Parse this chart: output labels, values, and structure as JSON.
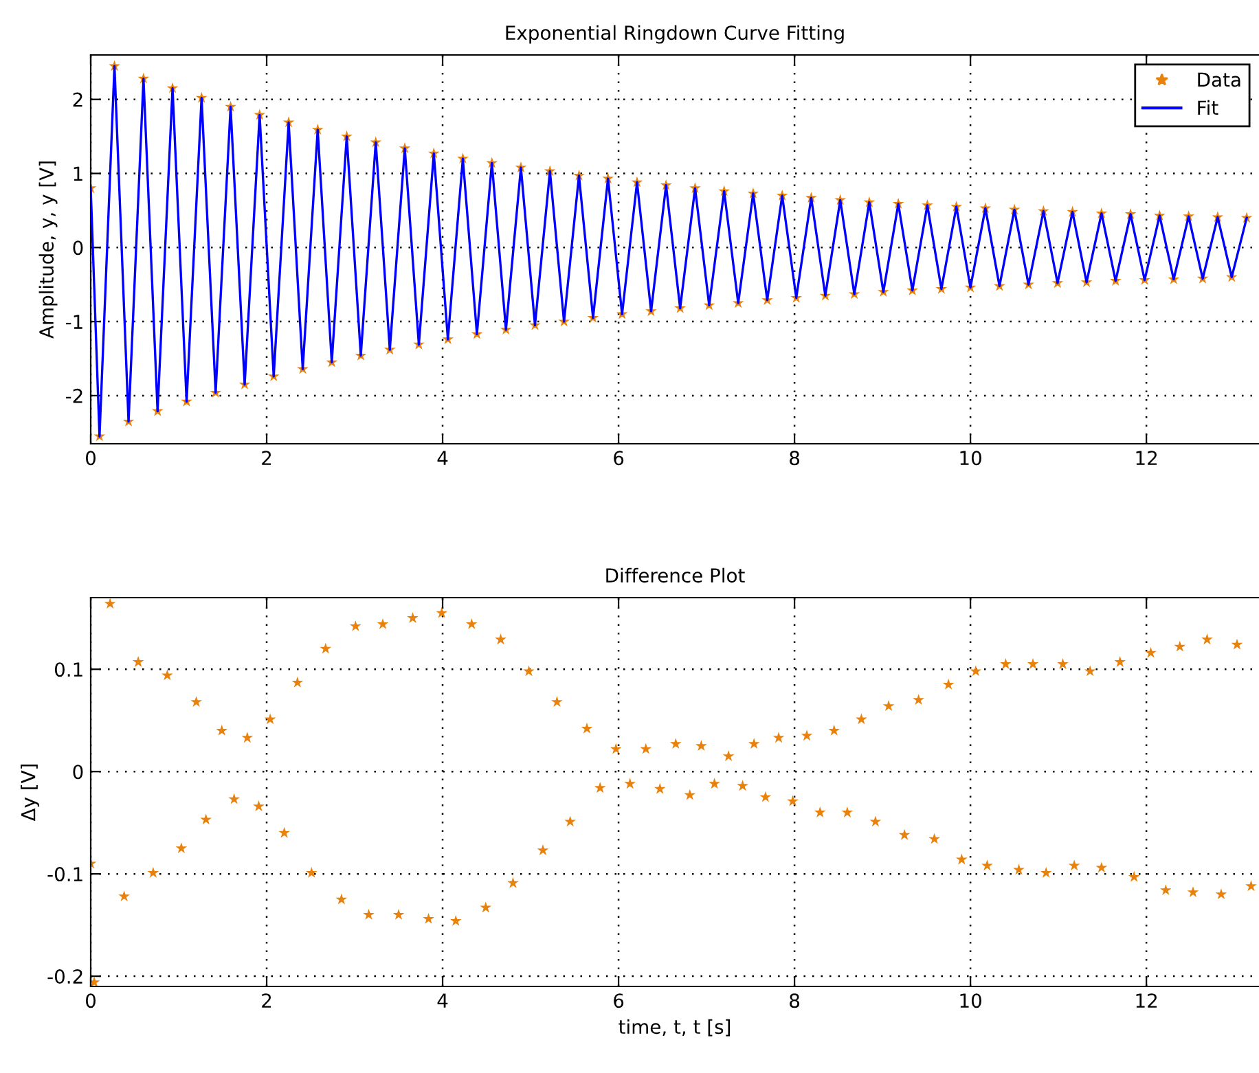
{
  "chart_data": [
    {
      "type": "scatter",
      "title": "Exponential Ringdown Curve Fitting",
      "ylabel": "Amplitude, y, y [V]",
      "x": [
        0.0,
        0.1,
        0.27,
        0.43,
        0.6,
        0.76,
        0.93,
        1.09,
        1.26,
        1.42,
        1.59,
        1.75,
        1.92,
        2.08,
        2.25,
        2.41,
        2.58,
        2.74,
        2.91,
        3.07,
        3.24,
        3.4,
        3.57,
        3.73,
        3.9,
        4.06,
        4.23,
        4.39,
        4.56,
        4.72,
        4.89,
        5.05,
        5.22,
        5.38,
        5.55,
        5.71,
        5.88,
        6.04,
        6.21,
        6.37,
        6.54,
        6.7,
        6.87,
        7.03,
        7.2,
        7.36,
        7.53,
        7.69,
        7.86,
        8.02,
        8.19,
        8.35,
        8.52,
        8.68,
        8.85,
        9.01,
        9.18,
        9.34,
        9.51,
        9.67,
        9.84,
        10.0,
        10.17,
        10.33,
        10.5,
        10.66,
        10.83,
        10.99,
        11.16,
        11.32,
        11.49,
        11.65,
        11.82,
        11.98,
        12.15,
        12.31,
        12.48,
        12.64,
        12.81,
        12.97,
        13.14
      ],
      "series": [
        {
          "name": "Data",
          "marker": "star",
          "color": "#e8820c",
          "values": [
            0.8,
            -2.55,
            2.45,
            -2.35,
            2.28,
            -2.21,
            2.15,
            -2.08,
            2.02,
            -1.96,
            1.9,
            -1.85,
            1.79,
            -1.74,
            1.69,
            -1.64,
            1.59,
            -1.55,
            1.5,
            -1.46,
            1.42,
            -1.38,
            1.34,
            -1.31,
            1.27,
            -1.24,
            1.2,
            -1.17,
            1.14,
            -1.11,
            1.08,
            -1.05,
            1.03,
            -1.0,
            0.97,
            -0.95,
            0.93,
            -0.9,
            0.88,
            -0.86,
            0.84,
            -0.82,
            0.8,
            -0.78,
            0.76,
            -0.75,
            0.73,
            -0.71,
            0.7,
            -0.68,
            0.67,
            -0.65,
            0.64,
            -0.63,
            0.61,
            -0.6,
            0.59,
            -0.58,
            0.57,
            -0.56,
            0.55,
            -0.54,
            0.53,
            -0.52,
            0.51,
            -0.5,
            0.49,
            -0.48,
            0.48,
            -0.47,
            0.46,
            -0.45,
            0.45,
            -0.44,
            0.43,
            -0.43,
            0.42,
            -0.42,
            0.41,
            -0.4,
            0.4
          ]
        },
        {
          "name": "Fit",
          "type": "line",
          "line_style": "solid",
          "color": "#0000ff",
          "values": [
            0.8,
            -2.55,
            2.45,
            -2.35,
            2.28,
            -2.21,
            2.15,
            -2.08,
            2.02,
            -1.96,
            1.9,
            -1.85,
            1.79,
            -1.74,
            1.69,
            -1.64,
            1.59,
            -1.55,
            1.5,
            -1.46,
            1.42,
            -1.38,
            1.34,
            -1.31,
            1.27,
            -1.24,
            1.2,
            -1.17,
            1.14,
            -1.11,
            1.08,
            -1.05,
            1.03,
            -1.0,
            0.97,
            -0.95,
            0.93,
            -0.9,
            0.88,
            -0.86,
            0.84,
            -0.82,
            0.8,
            -0.78,
            0.76,
            -0.75,
            0.73,
            -0.71,
            0.7,
            -0.68,
            0.67,
            -0.65,
            0.64,
            -0.63,
            0.61,
            -0.6,
            0.59,
            -0.58,
            0.57,
            -0.56,
            0.55,
            -0.54,
            0.53,
            -0.52,
            0.51,
            -0.5,
            0.49,
            -0.48,
            0.48,
            -0.47,
            0.46,
            -0.45,
            0.45,
            -0.44,
            0.43,
            -0.43,
            0.42,
            -0.42,
            0.41,
            -0.4,
            0.4
          ]
        }
      ],
      "xlim": [
        0,
        13.28
      ],
      "xticks": [
        0,
        2,
        4,
        6,
        8,
        10,
        12
      ],
      "ylim": [
        -2.65,
        2.6
      ],
      "yticks": [
        -2,
        -1,
        0,
        1,
        2
      ],
      "grid": true,
      "legend": "top right"
    },
    {
      "type": "scatter",
      "title": "Difference Plot",
      "xlabel": "time, t, t [s]",
      "ylabel": "Δy [V]",
      "x": [
        0.0,
        0.04,
        0.22,
        0.38,
        0.54,
        0.71,
        0.87,
        1.03,
        1.2,
        1.31,
        1.49,
        1.63,
        1.78,
        1.91,
        2.04,
        2.2,
        2.35,
        2.51,
        2.67,
        2.85,
        3.01,
        3.16,
        3.32,
        3.5,
        3.66,
        3.84,
        3.99,
        4.15,
        4.33,
        4.49,
        4.66,
        4.8,
        4.98,
        5.14,
        5.3,
        5.45,
        5.64,
        5.79,
        5.97,
        6.13,
        6.31,
        6.47,
        6.65,
        6.81,
        6.94,
        7.09,
        7.25,
        7.41,
        7.54,
        7.67,
        7.82,
        7.98,
        8.14,
        8.29,
        8.45,
        8.6,
        8.76,
        8.92,
        9.07,
        9.25,
        9.41,
        9.59,
        9.75,
        9.9,
        10.06,
        10.19,
        10.4,
        10.55,
        10.71,
        10.86,
        11.05,
        11.18,
        11.36,
        11.49,
        11.7,
        11.86,
        12.05,
        12.22,
        12.38,
        12.53,
        12.69,
        12.85,
        13.03,
        13.19
      ],
      "series": [
        {
          "marker": "star",
          "color": "#e8820c",
          "values": [
            -0.09,
            -0.206,
            0.164,
            -0.122,
            0.107,
            -0.099,
            0.094,
            -0.075,
            0.068,
            -0.047,
            0.04,
            -0.027,
            0.033,
            -0.034,
            0.051,
            -0.06,
            0.087,
            -0.099,
            0.12,
            -0.125,
            0.142,
            -0.14,
            0.144,
            -0.14,
            0.15,
            -0.144,
            0.155,
            -0.146,
            0.144,
            -0.133,
            0.129,
            -0.109,
            0.098,
            -0.077,
            0.068,
            -0.049,
            0.042,
            -0.016,
            0.022,
            -0.012,
            0.022,
            -0.017,
            0.027,
            -0.023,
            0.025,
            -0.012,
            0.015,
            -0.014,
            0.027,
            -0.025,
            0.033,
            -0.029,
            0.035,
            -0.04,
            0.04,
            -0.04,
            0.051,
            -0.049,
            0.064,
            -0.062,
            0.07,
            -0.066,
            0.085,
            -0.086,
            0.098,
            -0.092,
            0.105,
            -0.096,
            0.105,
            -0.099,
            0.105,
            -0.092,
            0.098,
            -0.094,
            0.107,
            -0.103,
            0.116,
            -0.116,
            0.122,
            -0.118,
            0.129,
            -0.12,
            0.124,
            -0.112
          ]
        }
      ],
      "xlim": [
        0,
        13.28
      ],
      "xticks": [
        0,
        2,
        4,
        6,
        8,
        10,
        12
      ],
      "ylim": [
        -0.21,
        0.17
      ],
      "yticks": [
        -0.2,
        -0.1,
        0,
        0.1
      ],
      "grid": true
    }
  ]
}
